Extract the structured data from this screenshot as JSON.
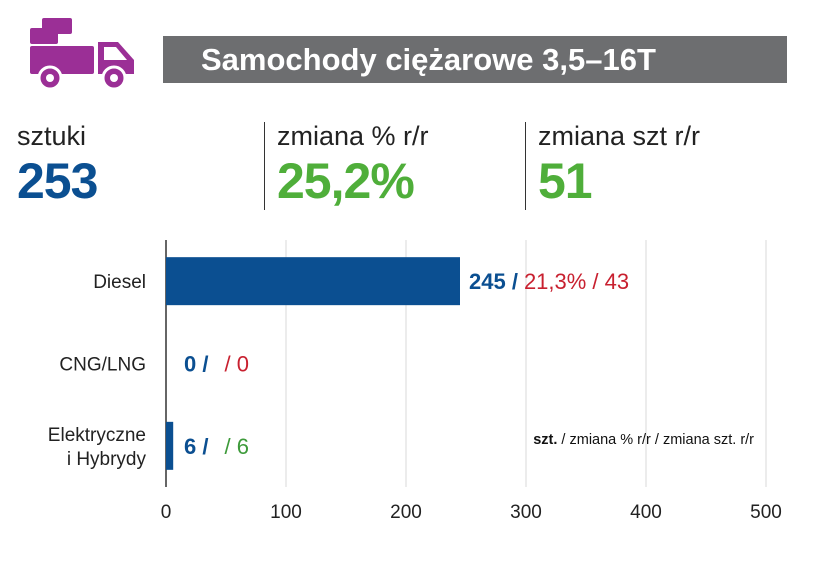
{
  "header": {
    "title": "Samochody ciężarowe 3,5–16T",
    "icon": "truck-icon",
    "icon_color": "#9b2f96"
  },
  "kpis": [
    {
      "label": "sztuki",
      "value": "253",
      "color": "#0b4f91"
    },
    {
      "label": "zmiana % r/r",
      "value": "25,2%",
      "color": "#4fae3a"
    },
    {
      "label": "zmiana szt r/r",
      "value": "51",
      "color": "#4fae3a"
    }
  ],
  "chart_data": {
    "type": "bar",
    "orientation": "horizontal",
    "categories": [
      [
        "Diesel"
      ],
      [
        "CNG/LNG"
      ],
      [
        "Elektryczne",
        "i Hybrydy"
      ]
    ],
    "values": [
      245,
      0,
      6
    ],
    "bar_color": "#0b4f91",
    "xlim": [
      0,
      500
    ],
    "xticks": [
      "0",
      "100",
      "200",
      "300",
      "400",
      "500"
    ],
    "grid": true,
    "data_labels": [
      {
        "units": "245",
        "sep1": " /",
        "pct": "21,3%",
        "sep2": " / ",
        "change": "43",
        "change_color": "#c8202f"
      },
      {
        "units": "0",
        "sep1": " /",
        "pct": "",
        "sep2": "/ ",
        "change": "0",
        "change_color": "#c8202f"
      },
      {
        "units": "6",
        "sep1": " /",
        "pct": "",
        "sep2": "/ ",
        "change": "6",
        "change_color": "#3d9a3a"
      }
    ],
    "legend_note": {
      "bold": "szt.",
      "rest": " / zmiana % r/r / zmiana szt. r/r"
    }
  }
}
